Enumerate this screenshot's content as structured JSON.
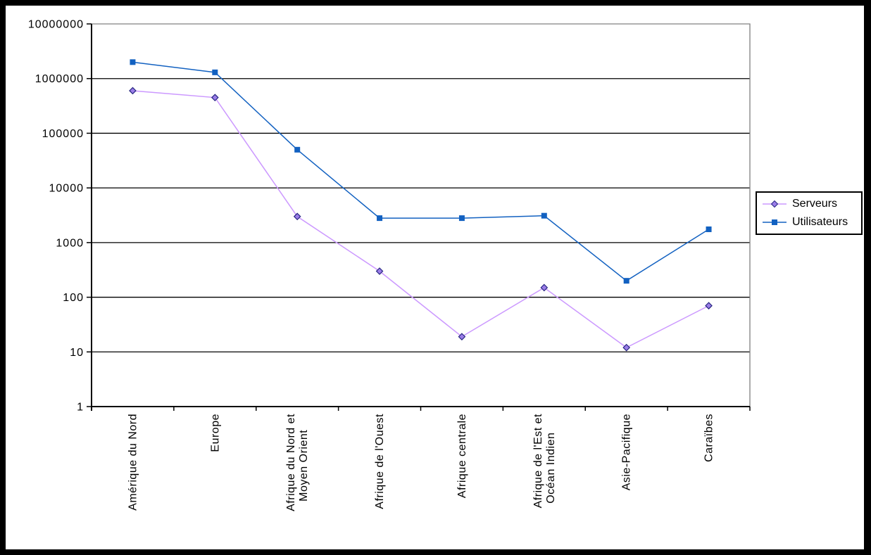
{
  "chart_data": {
    "type": "line",
    "y_scale": "log",
    "title": "",
    "xlabel": "",
    "ylabel": "",
    "categories": [
      "Amérique du Nord",
      "Europe",
      "Afrique du Nord et\nMoyen Orient",
      "Afrique de l'Ouest",
      "Afrique centrale",
      "Afrique de l'Est et\nOcéan Indien",
      "Asie-Pacifique",
      "Caraïbes"
    ],
    "series": [
      {
        "name": "Serveurs",
        "marker": "diamond",
        "line_color": "#CC99FF",
        "marker_fill": "#9B7DE8",
        "marker_stroke": "#262680",
        "values": [
          600000,
          450000,
          3000,
          300,
          19,
          150,
          12,
          70
        ]
      },
      {
        "name": "Utilisateurs",
        "marker": "square",
        "line_color": "#1261C1",
        "marker_fill": "#1261C1",
        "marker_stroke": "#1261C1",
        "values": [
          2000000,
          1300000,
          50000,
          2800,
          2800,
          3100,
          200,
          1750
        ]
      }
    ],
    "y_ticks": [
      1,
      10,
      100,
      1000,
      10000,
      100000,
      1000000,
      10000000
    ],
    "ylim": [
      1,
      10000000
    ],
    "grid": true,
    "legend_position": "right",
    "colors": {
      "gridline": "#000000",
      "plot_border": "#808080",
      "axis": "#000000",
      "background": "#FFFFFF",
      "frame": "#000000",
      "text": "#000000"
    }
  }
}
